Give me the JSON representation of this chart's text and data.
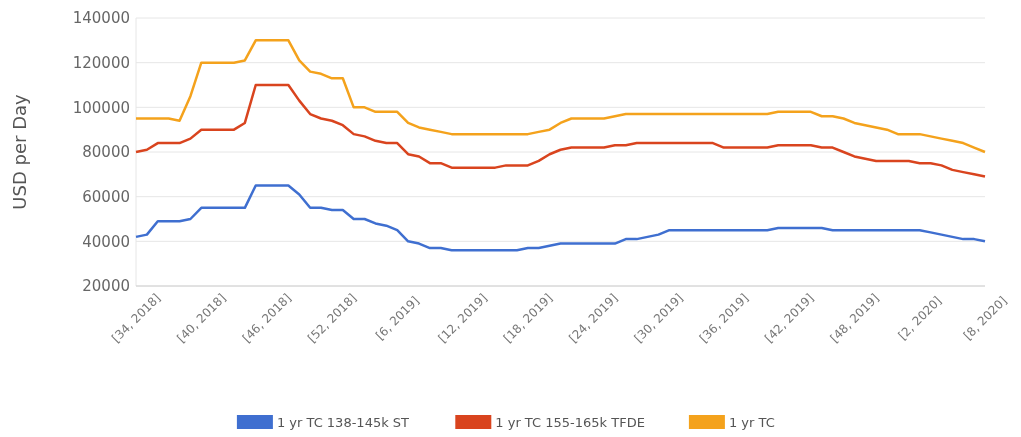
{
  "chart_data": {
    "type": "line",
    "ylabel": "USD per Day",
    "categories": [
      "[34, 2018]",
      null,
      null,
      null,
      null,
      null,
      "[40, 2018]",
      null,
      null,
      null,
      null,
      null,
      "[46, 2018]",
      null,
      null,
      null,
      null,
      null,
      "[52, 2018]",
      null,
      null,
      null,
      null,
      null,
      "[6, 2019]",
      null,
      null,
      null,
      null,
      null,
      "[12, 2019]",
      null,
      null,
      null,
      null,
      null,
      "[18, 2019]",
      null,
      null,
      null,
      null,
      null,
      "[24, 2019]",
      null,
      null,
      null,
      null,
      null,
      "[30, 2019]",
      null,
      null,
      null,
      null,
      null,
      "[36, 2019]",
      null,
      null,
      null,
      null,
      null,
      "[42, 2019]",
      null,
      null,
      null,
      null,
      null,
      "[48, 2019]",
      null,
      null,
      null,
      null,
      null,
      "[2, 2020]",
      null,
      null,
      null,
      null,
      null,
      "[8, 2020]"
    ],
    "series": [
      {
        "name": "1 yr TC 138-145k ST",
        "color": "#3f6fd0",
        "values": [
          42000,
          43000,
          49000,
          49000,
          49000,
          50000,
          55000,
          55000,
          55000,
          55000,
          55000,
          65000,
          65000,
          65000,
          65000,
          61000,
          55000,
          55000,
          54000,
          54000,
          50000,
          50000,
          48000,
          47000,
          45000,
          40000,
          39000,
          37000,
          37000,
          36000,
          36000,
          36000,
          36000,
          36000,
          36000,
          36000,
          37000,
          37000,
          38000,
          39000,
          39000,
          39000,
          39000,
          39000,
          39000,
          41000,
          41000,
          42000,
          43000,
          45000,
          45000,
          45000,
          45000,
          45000,
          45000,
          45000,
          45000,
          45000,
          45000,
          46000,
          46000,
          46000,
          46000,
          46000,
          45000,
          45000,
          45000,
          45000,
          45000,
          45000,
          45000,
          45000,
          45000,
          44000,
          43000,
          42000,
          41000,
          41000,
          40000
        ]
      },
      {
        "name": "1 yr TC 155-165k TFDE",
        "color": "#d9441e",
        "values": [
          80000,
          81000,
          84000,
          84000,
          84000,
          86000,
          90000,
          90000,
          90000,
          90000,
          93000,
          110000,
          110000,
          110000,
          110000,
          103000,
          97000,
          95000,
          94000,
          92000,
          88000,
          87000,
          85000,
          84000,
          84000,
          79000,
          78000,
          75000,
          75000,
          73000,
          73000,
          73000,
          73000,
          73000,
          74000,
          74000,
          74000,
          76000,
          79000,
          81000,
          82000,
          82000,
          82000,
          82000,
          83000,
          83000,
          84000,
          84000,
          84000,
          84000,
          84000,
          84000,
          84000,
          84000,
          82000,
          82000,
          82000,
          82000,
          82000,
          83000,
          83000,
          83000,
          83000,
          82000,
          82000,
          80000,
          78000,
          77000,
          76000,
          76000,
          76000,
          76000,
          75000,
          75000,
          74000,
          72000,
          71000,
          70000,
          69000
        ]
      },
      {
        "name": "1 yr TC",
        "color": "#f4a21c",
        "values": [
          95000,
          95000,
          95000,
          95000,
          94000,
          105000,
          120000,
          120000,
          120000,
          120000,
          121000,
          130000,
          130000,
          130000,
          130000,
          121000,
          116000,
          115000,
          113000,
          113000,
          100000,
          100000,
          98000,
          98000,
          98000,
          93000,
          91000,
          90000,
          89000,
          88000,
          88000,
          88000,
          88000,
          88000,
          88000,
          88000,
          88000,
          89000,
          90000,
          93000,
          95000,
          95000,
          95000,
          95000,
          96000,
          97000,
          97000,
          97000,
          97000,
          97000,
          97000,
          97000,
          97000,
          97000,
          97000,
          97000,
          97000,
          97000,
          97000,
          98000,
          98000,
          98000,
          98000,
          96000,
          96000,
          95000,
          93000,
          92000,
          91000,
          90000,
          88000,
          88000,
          88000,
          87000,
          86000,
          85000,
          84000,
          82000,
          80000
        ]
      }
    ],
    "ylim": [
      20000,
      140000
    ],
    "yticks": [
      20000,
      40000,
      60000,
      80000,
      100000,
      120000,
      140000
    ],
    "grid": "y",
    "legend": "bottom",
    "marker": "none",
    "line_style": "solid"
  }
}
